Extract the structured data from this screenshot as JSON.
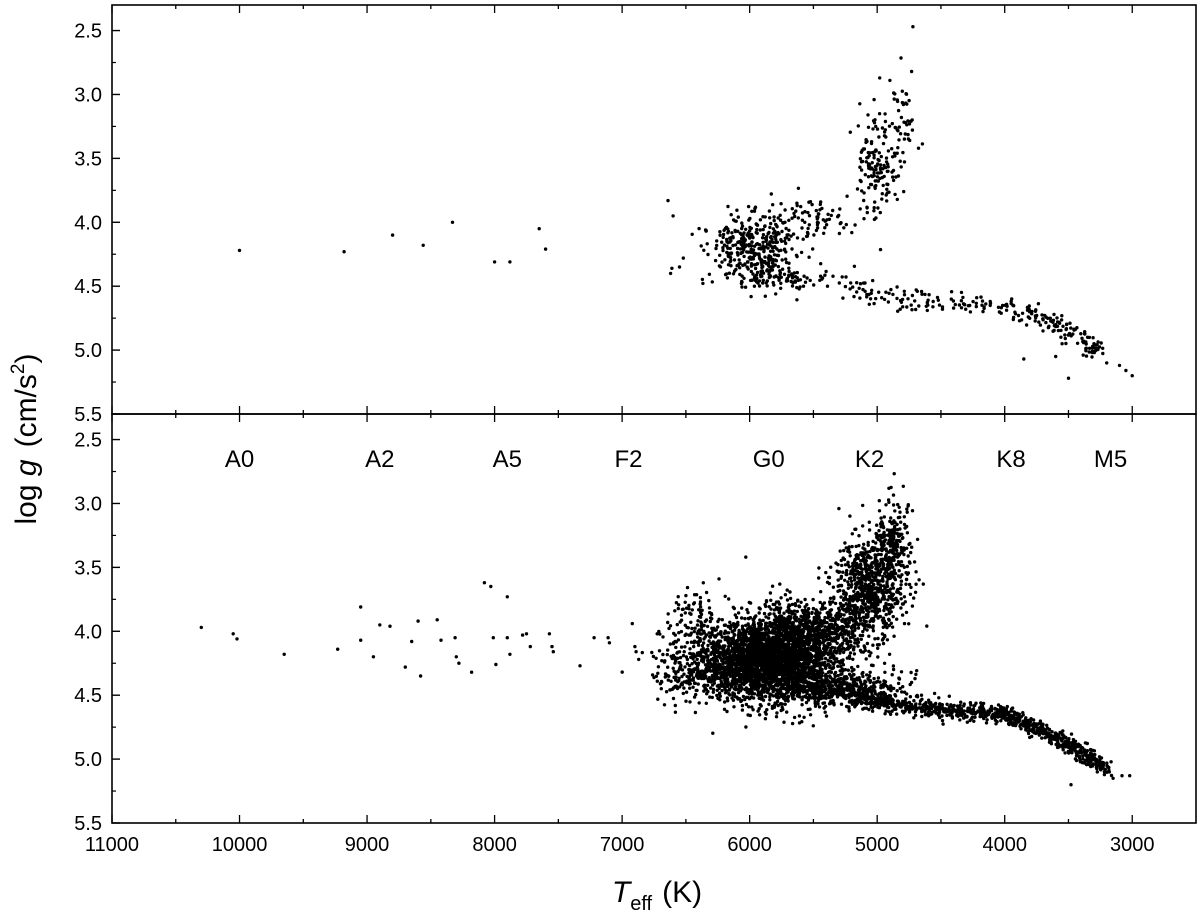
{
  "chart_data": {
    "type": "scatter",
    "x_axis": {
      "label_var": "T",
      "label_sub": "eff",
      "label_unit": "(K)",
      "range": [
        11000,
        2500
      ],
      "reversed": true,
      "ticks": [
        11000,
        10000,
        9000,
        8000,
        7000,
        6000,
        5000,
        4000,
        3000
      ],
      "tick_labels": [
        "11000",
        "10000",
        "9000",
        "8000",
        "7000",
        "6000",
        "5000",
        "4000",
        "3000"
      ]
    },
    "y_axis": {
      "label_prefix": "log ",
      "label_var": "g",
      "label_unit_open": "(cm/s",
      "label_unit_sup": "2",
      "label_unit_close": ")",
      "range": [
        2.3,
        5.5
      ],
      "reversed": true,
      "ticks": [
        2.5,
        3.0,
        3.5,
        4.0,
        4.5,
        5.0,
        5.5
      ],
      "tick_labels": [
        "2.5",
        "3.0",
        "3.5",
        "4.0",
        "4.5",
        "5.0",
        "5.5"
      ]
    },
    "spectral_types": [
      {
        "label": "A0",
        "teff": 10000
      },
      {
        "label": "A2",
        "teff": 8900
      },
      {
        "label": "A5",
        "teff": 7900
      },
      {
        "label": "F2",
        "teff": 6950
      },
      {
        "label": "G0",
        "teff": 5850
      },
      {
        "label": "K2",
        "teff": 5060
      },
      {
        "label": "K8",
        "teff": 3950
      },
      {
        "label": "M5",
        "teff": 3170
      }
    ],
    "panels": [
      {
        "name": "top",
        "points": [
          [
            10000,
            4.22
          ],
          [
            9180,
            4.23
          ],
          [
            8800,
            4.1
          ],
          [
            8560,
            4.18
          ],
          [
            8330,
            4.0
          ],
          [
            8000,
            4.31
          ],
          [
            7880,
            4.31
          ],
          [
            7650,
            4.05
          ],
          [
            7600,
            4.21
          ],
          [
            6610,
            4.36
          ],
          [
            6620,
            4.4
          ],
          [
            6600,
            3.95
          ],
          [
            6640,
            3.83
          ],
          [
            6550,
            4.35
          ],
          [
            6520,
            4.28
          ],
          [
            4720,
            2.47
          ],
          [
            4730,
            2.82
          ],
          [
            4980,
            2.87
          ],
          [
            4900,
            2.89
          ],
          [
            3000,
            5.2
          ],
          [
            3050,
            5.16
          ],
          [
            3100,
            5.12
          ],
          [
            3200,
            5.1
          ],
          [
            3300,
            4.95
          ],
          [
            3500,
            5.22
          ],
          [
            3600,
            5.05
          ],
          [
            3850,
            5.07
          ],
          [
            3700,
            4.85
          ],
          [
            3550,
            4.95
          ],
          [
            3350,
            4.9
          ]
        ],
        "clusters": [
          {
            "teff": 5950,
            "logg": 4.2,
            "sx": 180,
            "sy": 0.14,
            "n": 380,
            "seed": 11
          },
          {
            "teff": 5500,
            "logg": 3.95,
            "sx": 180,
            "sy": 0.07,
            "n": 60,
            "seed": 12
          },
          {
            "teff": 5000,
            "logg": 3.55,
            "sx": 90,
            "sy": 0.2,
            "n": 150,
            "seed": 13
          },
          {
            "teff": 4820,
            "logg": 3.2,
            "sx": 60,
            "sy": 0.15,
            "n": 40,
            "seed": 14
          },
          {
            "teff": 5800,
            "logg": 4.45,
            "sx": 220,
            "sy": 0.05,
            "n": 80,
            "seed": 15
          }
        ],
        "tracks": [
          {
            "points": [
              [
                5300,
                4.5
              ],
              [
                4800,
                4.6
              ],
              [
                4300,
                4.62
              ],
              [
                3800,
                4.72
              ],
              [
                3500,
                4.85
              ],
              [
                3250,
                5.0
              ]
            ],
            "sigma": 0.05,
            "n": 230,
            "seed": 16
          }
        ]
      },
      {
        "name": "bottom",
        "points": [
          [
            10300,
            3.97
          ],
          [
            10050,
            4.02
          ],
          [
            10020,
            4.06
          ],
          [
            9650,
            4.18
          ],
          [
            9230,
            4.14
          ],
          [
            9050,
            3.81
          ],
          [
            9050,
            4.07
          ],
          [
            8950,
            4.2
          ],
          [
            8900,
            3.95
          ],
          [
            8820,
            3.96
          ],
          [
            8700,
            4.28
          ],
          [
            8650,
            4.08
          ],
          [
            8600,
            3.92
          ],
          [
            8580,
            4.35
          ],
          [
            8450,
            3.91
          ],
          [
            8420,
            4.07
          ],
          [
            8310,
            4.05
          ],
          [
            8300,
            4.2
          ],
          [
            8280,
            4.25
          ],
          [
            8180,
            4.32
          ],
          [
            8080,
            3.62
          ],
          [
            8030,
            3.65
          ],
          [
            8010,
            4.05
          ],
          [
            7990,
            4.26
          ],
          [
            7900,
            3.73
          ],
          [
            7900,
            4.05
          ],
          [
            7880,
            4.18
          ],
          [
            7780,
            4.03
          ],
          [
            7750,
            4.02
          ],
          [
            7720,
            4.12
          ],
          [
            7570,
            4.02
          ],
          [
            7550,
            4.12
          ],
          [
            7540,
            4.16
          ],
          [
            7330,
            4.27
          ],
          [
            7220,
            4.05
          ],
          [
            7110,
            4.05
          ],
          [
            7100,
            4.09
          ],
          [
            6920,
            3.94
          ],
          [
            6900,
            4.12
          ],
          [
            6890,
            4.16
          ],
          [
            6870,
            4.22
          ],
          [
            6030,
            3.42
          ],
          [
            5300,
            3.04
          ],
          [
            3080,
            5.13
          ],
          [
            3020,
            5.13
          ],
          [
            3480,
            5.2
          ],
          [
            3150,
            5.15
          ]
        ],
        "clusters": [
          {
            "teff": 5850,
            "logg": 4.22,
            "sx": 240,
            "sy": 0.16,
            "n": 2600,
            "seed": 21
          },
          {
            "teff": 5500,
            "logg": 4.0,
            "sx": 200,
            "sy": 0.13,
            "n": 700,
            "seed": 22
          },
          {
            "teff": 5050,
            "logg": 3.65,
            "sx": 140,
            "sy": 0.2,
            "n": 700,
            "seed": 23
          },
          {
            "teff": 4870,
            "logg": 3.3,
            "sx": 70,
            "sy": 0.18,
            "n": 220,
            "seed": 24
          },
          {
            "teff": 6350,
            "logg": 4.3,
            "sx": 200,
            "sy": 0.12,
            "n": 350,
            "seed": 25
          },
          {
            "teff": 5300,
            "logg": 4.45,
            "sx": 250,
            "sy": 0.07,
            "n": 500,
            "seed": 26
          },
          {
            "teff": 6400,
            "logg": 3.95,
            "sx": 120,
            "sy": 0.15,
            "n": 120,
            "seed": 27
          }
        ],
        "tracks": [
          {
            "points": [
              [
                5200,
                4.52
              ],
              [
                4800,
                4.58
              ],
              [
                4400,
                4.62
              ],
              [
                4000,
                4.65
              ],
              [
                3700,
                4.78
              ],
              [
                3450,
                4.92
              ],
              [
                3200,
                5.08
              ]
            ],
            "sigma": 0.035,
            "n": 900,
            "seed": 28
          }
        ]
      }
    ]
  }
}
